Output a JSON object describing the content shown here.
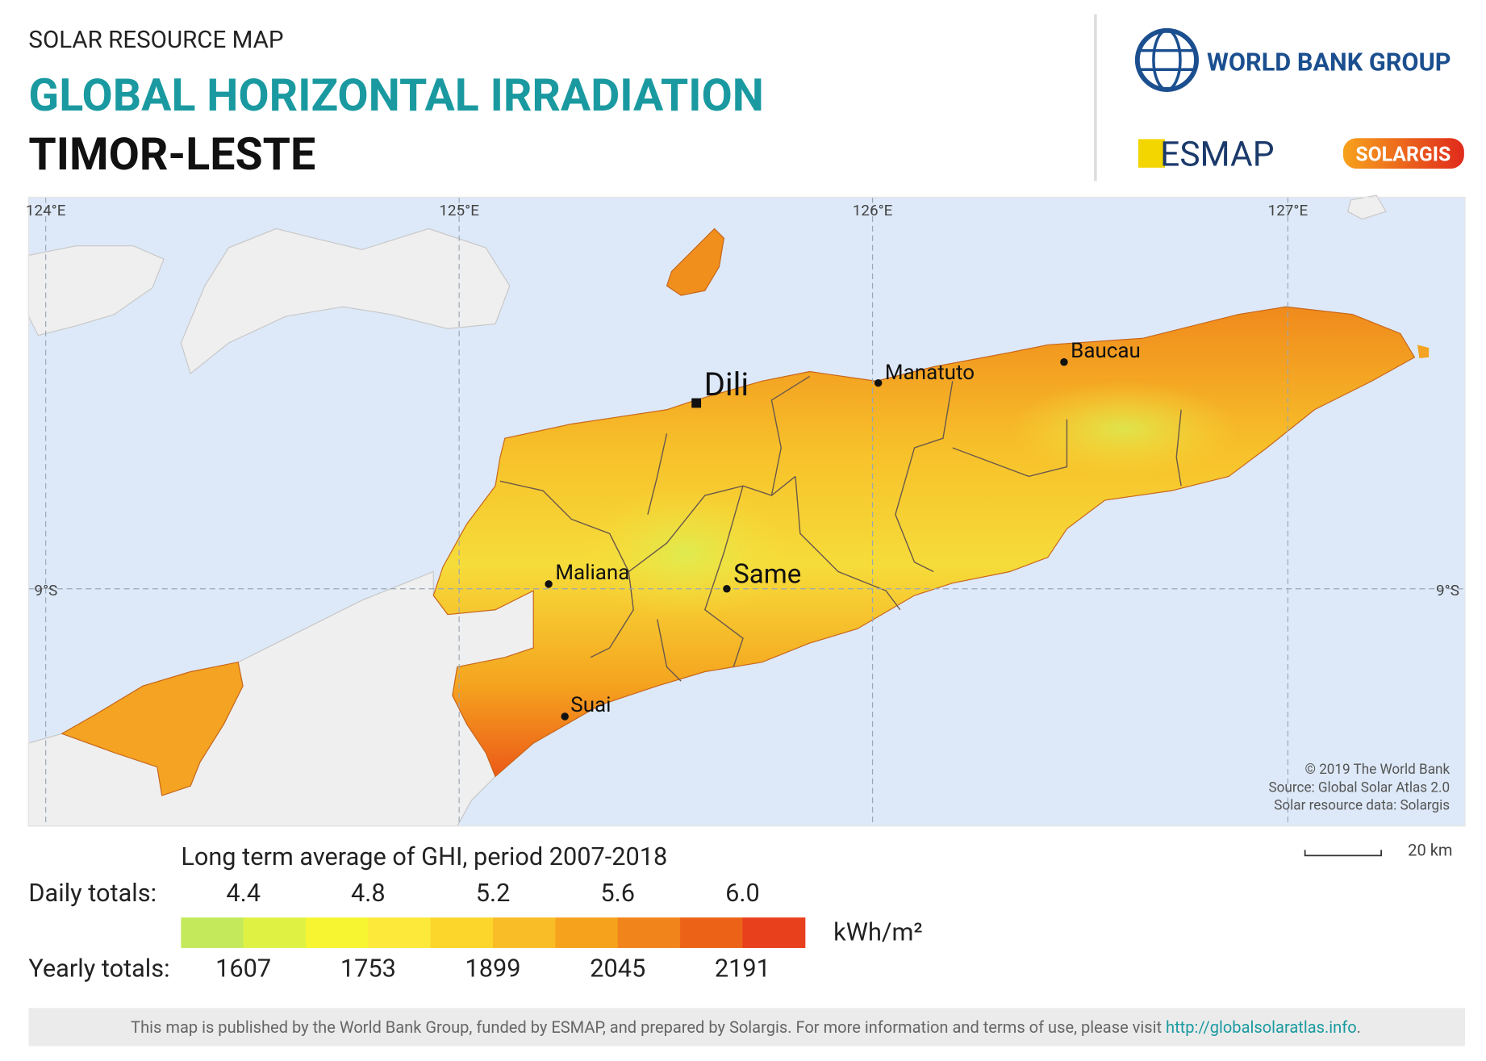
{
  "header": {
    "subtitle": "SOLAR RESOURCE MAP",
    "title": "GLOBAL HORIZONTAL IRRADIATION",
    "country": "TIMOR-LESTE"
  },
  "logos": {
    "world_bank": "WORLD BANK GROUP",
    "esmap": "ESMAP",
    "solargis": "SOLARGIS"
  },
  "map": {
    "longitudes": [
      "124°E",
      "125°E",
      "126°E",
      "127°E"
    ],
    "latitude": "9°S",
    "cities": [
      {
        "name": "Dili"
      },
      {
        "name": "Manatuto"
      },
      {
        "name": "Baucau"
      },
      {
        "name": "Maliana"
      },
      {
        "name": "Same"
      },
      {
        "name": "Suai"
      }
    ],
    "credits": [
      "© 2019 The World Bank",
      "Source: Global Solar Atlas 2.0",
      "Solar resource data: Solargis"
    ],
    "scale": "20 km"
  },
  "legend": {
    "title": "Long term average of GHI, period 2007-2018",
    "daily_label": "Daily totals:",
    "daily": [
      "4.4",
      "4.8",
      "5.2",
      "5.6",
      "6.0"
    ],
    "unit": "kWh/m²",
    "yearly_label": "Yearly totals:",
    "yearly": [
      "1607",
      "1753",
      "1899",
      "2045",
      "2191"
    ],
    "colors": [
      "#c4ea5b",
      "#dff244",
      "#f7f431",
      "#fde93a",
      "#fdd62c",
      "#f8bd27",
      "#f6a21c",
      "#f1841a",
      "#ec6318",
      "#e83f1c"
    ]
  },
  "footer": {
    "text": "This map is published by the World Bank Group, funded by ESMAP, and prepared by Solargis. For more information and terms of use, please visit ",
    "link": "http://globalsolaratlas.info",
    "end": "."
  }
}
